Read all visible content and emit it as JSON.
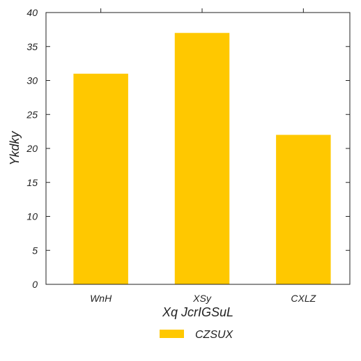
{
  "chart_data": {
    "type": "bar",
    "categories": [
      "WnH",
      "XSy",
      "CXLZ"
    ],
    "series": [
      {
        "name": "CZSUX",
        "values": [
          31,
          37,
          22
        ]
      }
    ],
    "xlabel": "Xq JcrIGSuL",
    "ylabel": "Ykdky",
    "ylim": [
      0,
      40
    ],
    "yticks": [
      "0",
      "5",
      "10",
      "15",
      "20",
      "25",
      "30",
      "35",
      "40"
    ],
    "grid": false,
    "legend": "bottom-center",
    "colors": {
      "bar": "#FFC800",
      "axis": "#222222"
    }
  }
}
